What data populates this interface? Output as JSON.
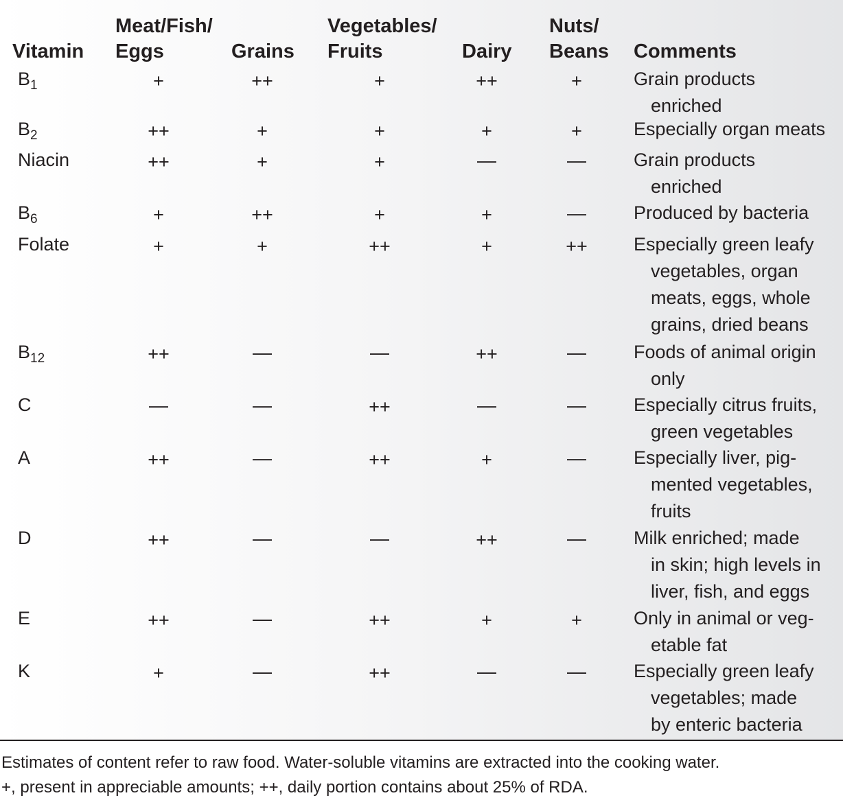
{
  "headers": {
    "vitamin": [
      "Vitamin"
    ],
    "meat": [
      "Meat/Fish/",
      "Eggs"
    ],
    "grains": [
      "Grains"
    ],
    "veg": [
      "Vegetables/",
      "Fruits"
    ],
    "dairy": [
      "Dairy"
    ],
    "nuts": [
      "Nuts/",
      "Beans"
    ],
    "comments": [
      "Comments"
    ]
  },
  "rows": [
    {
      "vitamin": "B",
      "sub": "1",
      "meat": "+",
      "grains": "++",
      "veg": "+",
      "dairy": "++",
      "nuts": "+",
      "comment": [
        "Grain products",
        "enriched"
      ]
    },
    {
      "vitamin": "B",
      "sub": "2",
      "meat": "++",
      "grains": "+",
      "veg": "+",
      "dairy": "+",
      "nuts": "+",
      "comment": [
        "Especially organ meats"
      ]
    },
    {
      "vitamin": "Niacin",
      "sub": "",
      "meat": "++",
      "grains": "+",
      "veg": "+",
      "dairy": "—",
      "nuts": "—",
      "comment": [
        "Grain products",
        "enriched"
      ]
    },
    {
      "vitamin": "B",
      "sub": "6",
      "meat": "+",
      "grains": "++",
      "veg": "+",
      "dairy": "+",
      "nuts": "—",
      "comment": [
        "Produced by bacteria"
      ]
    },
    {
      "vitamin": "Folate",
      "sub": "",
      "meat": "+",
      "grains": "+",
      "veg": "++",
      "dairy": "+",
      "nuts": "++",
      "comment": [
        "Especially green leafy",
        "vegetables, organ",
        "meats, eggs, whole",
        "grains, dried beans"
      ]
    },
    {
      "vitamin": "B",
      "sub": "12",
      "meat": "++",
      "grains": "—",
      "veg": "—",
      "dairy": "++",
      "nuts": "—",
      "comment": [
        "Foods of animal origin",
        "only"
      ]
    },
    {
      "vitamin": "C",
      "sub": "",
      "meat": "—",
      "grains": "—",
      "veg": "++",
      "dairy": "—",
      "nuts": "—",
      "comment": [
        "Especially citrus fruits,",
        "green vegetables"
      ]
    },
    {
      "vitamin": "A",
      "sub": "",
      "meat": "++",
      "grains": "—",
      "veg": "++",
      "dairy": "+",
      "nuts": "—",
      "comment": [
        "Especially liver, pig-",
        "mented vegetables,",
        "fruits"
      ]
    },
    {
      "vitamin": "D",
      "sub": "",
      "meat": "++",
      "grains": "—",
      "veg": "—",
      "dairy": "++",
      "nuts": "—",
      "comment": [
        "Milk enriched; made",
        "in skin; high levels in",
        "liver, fish, and eggs"
      ]
    },
    {
      "vitamin": "E",
      "sub": "",
      "meat": "++",
      "grains": "—",
      "veg": "++",
      "dairy": "+",
      "nuts": "+",
      "comment": [
        "Only in animal or veg-",
        "etable fat"
      ]
    },
    {
      "vitamin": "K",
      "sub": "",
      "meat": "+",
      "grains": "—",
      "veg": "++",
      "dairy": "—",
      "nuts": "—",
      "comment": [
        "Especially green leafy",
        "vegetables; made",
        "by enteric bacteria"
      ]
    }
  ],
  "footnote": [
    "Estimates of content refer to raw food. Water-soluble vitamins are extracted into the cooking water.",
    "+, present in appreciable amounts; ++, daily portion contains about 25% of RDA."
  ]
}
